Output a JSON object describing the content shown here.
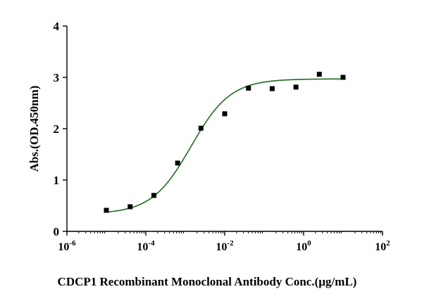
{
  "chart_data": {
    "type": "scatter",
    "title": "",
    "xlabel": "CDCP1 Recombinant Monoclonal Antibody Conc.(µg/mL)",
    "ylabel": "Abs.(OD.450nm)",
    "x_scale": "log",
    "xlim": [
      1e-06,
      100
    ],
    "ylim": [
      0,
      4
    ],
    "x_ticks": [
      {
        "value": 1e-06,
        "base": "10",
        "exp": "-6"
      },
      {
        "value": 0.0001,
        "base": "10",
        "exp": "-4"
      },
      {
        "value": 0.01,
        "base": "10",
        "exp": "-2"
      },
      {
        "value": 1,
        "base": "10",
        "exp": "0"
      },
      {
        "value": 100,
        "base": "10",
        "exp": "2"
      }
    ],
    "y_ticks": [
      {
        "value": 0,
        "label": "0"
      },
      {
        "value": 1,
        "label": "1"
      },
      {
        "value": 2,
        "label": "2"
      },
      {
        "value": 3,
        "label": "3"
      },
      {
        "value": 4,
        "label": "4"
      }
    ],
    "grid": false,
    "legend": "none",
    "series": [
      {
        "points": [
          {
            "x": 1e-05,
            "y": 0.41
          },
          {
            "x": 4e-05,
            "y": 0.48
          },
          {
            "x": 0.00016,
            "y": 0.7
          },
          {
            "x": 0.00064,
            "y": 1.33
          },
          {
            "x": 0.0025,
            "y": 2.01
          },
          {
            "x": 0.01,
            "y": 2.29
          },
          {
            "x": 0.04,
            "y": 2.79
          },
          {
            "x": 0.16,
            "y": 2.78
          },
          {
            "x": 0.64,
            "y": 2.81
          },
          {
            "x": 2.5,
            "y": 3.06
          },
          {
            "x": 10,
            "y": 3.0
          }
        ],
        "marker_color": "#000000"
      }
    ],
    "fit_curve": {
      "model": "4PL",
      "bottom": 0.34,
      "top": 2.97,
      "ec50": 0.0014,
      "hill": 0.87,
      "color": "#1f6b1f"
    }
  }
}
